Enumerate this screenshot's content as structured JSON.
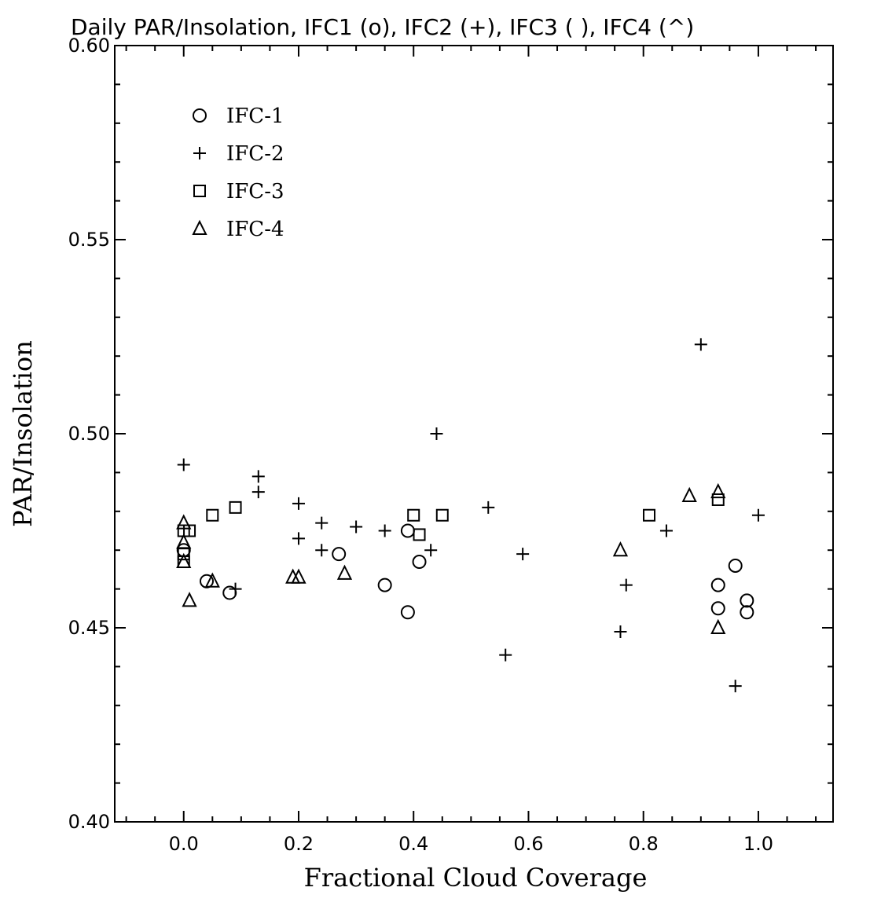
{
  "chart_data": {
    "type": "scatter",
    "title": "Daily PAR/Insolation, IFC1 (o), IFC2 (+), IFC3 ( ), IFC4 (^)",
    "xlabel": "Fractional Cloud Coverage",
    "ylabel": "PAR/Insolation",
    "xlim": [
      -0.12,
      1.13
    ],
    "ylim": [
      0.4,
      0.6
    ],
    "x_ticks": [
      0.0,
      0.2,
      0.4,
      0.6,
      0.8,
      1.0
    ],
    "x_tick_labels": [
      "0.0",
      "0.2",
      "0.4",
      "0.6",
      "0.8",
      "1.0"
    ],
    "y_ticks": [
      0.4,
      0.45,
      0.5,
      0.55,
      0.6
    ],
    "y_tick_labels": [
      "0.40",
      "0.45",
      "0.50",
      "0.55",
      "0.60"
    ],
    "grid": false,
    "legend_position": "top-left",
    "series": [
      {
        "name": "IFC-1",
        "marker": "circle",
        "x": [
          0.0,
          0.04,
          0.08,
          0.27,
          0.35,
          0.39,
          0.39,
          0.41,
          0.93,
          0.93,
          0.96,
          0.98,
          0.98
        ],
        "y": [
          0.47,
          0.462,
          0.459,
          0.469,
          0.461,
          0.475,
          0.454,
          0.467,
          0.461,
          0.455,
          0.466,
          0.457,
          0.454
        ]
      },
      {
        "name": "IFC-2",
        "marker": "plus",
        "x": [
          0.0,
          0.09,
          0.13,
          0.13,
          0.2,
          0.2,
          0.24,
          0.24,
          0.3,
          0.35,
          0.43,
          0.44,
          0.53,
          0.56,
          0.59,
          0.76,
          0.77,
          0.84,
          0.9,
          0.96,
          1.0
        ],
        "y": [
          0.492,
          0.46,
          0.489,
          0.485,
          0.482,
          0.473,
          0.477,
          0.47,
          0.476,
          0.475,
          0.47,
          0.5,
          0.481,
          0.443,
          0.469,
          0.449,
          0.461,
          0.475,
          0.523,
          0.435,
          0.479
        ]
      },
      {
        "name": "IFC-3",
        "marker": "square",
        "x": [
          0.0,
          0.0,
          0.0,
          0.01,
          0.05,
          0.09,
          0.4,
          0.41,
          0.45,
          0.81,
          0.93
        ],
        "y": [
          0.475,
          0.469,
          0.467,
          0.475,
          0.479,
          0.481,
          0.479,
          0.474,
          0.479,
          0.479,
          0.483
        ]
      },
      {
        "name": "IFC-4",
        "marker": "triangle",
        "x": [
          0.0,
          0.0,
          0.0,
          0.01,
          0.05,
          0.19,
          0.2,
          0.28,
          0.76,
          0.88,
          0.93,
          0.93
        ],
        "y": [
          0.477,
          0.472,
          0.467,
          0.457,
          0.462,
          0.463,
          0.463,
          0.464,
          0.47,
          0.484,
          0.485,
          0.45
        ]
      }
    ]
  }
}
